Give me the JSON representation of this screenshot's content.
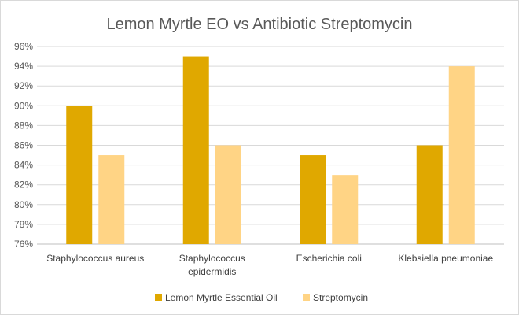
{
  "chart_data": {
    "type": "bar",
    "title": "Lemon Myrtle EO vs Antibiotic Streptomycin",
    "categories": [
      [
        "Staphylococcus aureus"
      ],
      [
        "Staphylococcus",
        "epidermidis"
      ],
      [
        "Escherichia coli"
      ],
      [
        "Klebsiella pneumoniae"
      ]
    ],
    "series": [
      {
        "name": "Lemon Myrtle Essential Oil",
        "color": "#e0a800",
        "values": [
          90,
          95,
          85,
          86
        ]
      },
      {
        "name": "Streptomycin",
        "color": "#ffd485",
        "values": [
          85,
          86,
          83,
          94
        ]
      }
    ],
    "ylim": [
      76,
      96
    ],
    "yticks": [
      76,
      78,
      80,
      82,
      84,
      86,
      88,
      90,
      92,
      94,
      96
    ],
    "y_unit": "%",
    "grid": true,
    "legend_position": "bottom",
    "xlabel": "",
    "ylabel": ""
  }
}
